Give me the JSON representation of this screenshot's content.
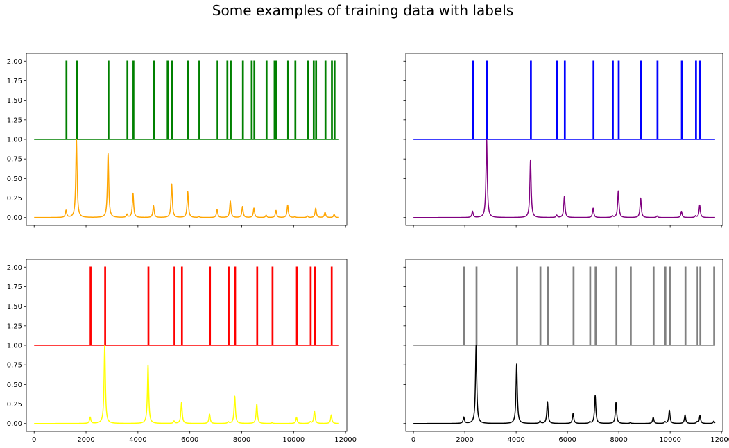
{
  "figure": {
    "suptitle": "Some examples of training data with labels"
  },
  "chart_data": [
    {
      "type": "line",
      "panel": "top-left",
      "xlim": [
        -300,
        12050
      ],
      "ylim": [
        -0.1,
        2.1
      ],
      "xticks": [
        0,
        2000,
        4000,
        6000,
        8000,
        10000,
        12000
      ],
      "yticks": [
        0.0,
        0.25,
        0.5,
        0.75,
        1.0,
        1.25,
        1.5,
        1.75,
        2.0
      ],
      "show_x_tick_labels": false,
      "show_y_tick_labels": true,
      "x_range": [
        0,
        11750
      ],
      "grid": false,
      "legend": "none",
      "series": [
        {
          "kind": "labels",
          "color": "#008000",
          "baseline": 1.0,
          "level": 2.0,
          "x": [
            1230,
            1630,
            2850,
            3580,
            3810,
            4600,
            5130,
            5300,
            5920,
            6350,
            7050,
            7430,
            7560,
            8030,
            8370,
            8470,
            8940,
            9250,
            9320,
            9770,
            10050,
            10530,
            10760,
            10850,
            11210,
            11460,
            11560
          ]
        },
        {
          "kind": "spectrum",
          "color": "#ffa500",
          "baseline": 0.0,
          "peaks": [
            {
              "x": 1230,
              "y": 0.09
            },
            {
              "x": 1630,
              "y": 1.0
            },
            {
              "x": 2850,
              "y": 0.82
            },
            {
              "x": 3580,
              "y": 0.04
            },
            {
              "x": 3810,
              "y": 0.31
            },
            {
              "x": 4600,
              "y": 0.15
            },
            {
              "x": 5300,
              "y": 0.43
            },
            {
              "x": 5920,
              "y": 0.33
            },
            {
              "x": 6350,
              "y": 0.01
            },
            {
              "x": 7050,
              "y": 0.1
            },
            {
              "x": 7560,
              "y": 0.21
            },
            {
              "x": 8030,
              "y": 0.14
            },
            {
              "x": 8470,
              "y": 0.12
            },
            {
              "x": 8940,
              "y": 0.03
            },
            {
              "x": 9320,
              "y": 0.09
            },
            {
              "x": 9770,
              "y": 0.16
            },
            {
              "x": 10050,
              "y": 0.01
            },
            {
              "x": 10530,
              "y": 0.02
            },
            {
              "x": 10850,
              "y": 0.12
            },
            {
              "x": 11210,
              "y": 0.07
            },
            {
              "x": 11560,
              "y": 0.04
            }
          ]
        }
      ]
    },
    {
      "type": "line",
      "panel": "top-right",
      "xlim": [
        -300,
        12050
      ],
      "ylim": [
        -0.1,
        2.1
      ],
      "xticks": [
        0,
        2000,
        4000,
        6000,
        8000,
        10000,
        12000
      ],
      "yticks": [
        0.0,
        0.25,
        0.5,
        0.75,
        1.0,
        1.25,
        1.5,
        1.75,
        2.0
      ],
      "show_x_tick_labels": false,
      "show_y_tick_labels": false,
      "x_range": [
        0,
        11750
      ],
      "grid": false,
      "legend": "none",
      "series": [
        {
          "kind": "labels",
          "color": "#0000ff",
          "baseline": 1.0,
          "level": 2.0,
          "x": [
            2300,
            2850,
            4560,
            5580,
            5880,
            7000,
            7750,
            7980,
            8850,
            9490,
            10440,
            10990,
            11150
          ]
        },
        {
          "kind": "spectrum",
          "color": "#800080",
          "baseline": 0.0,
          "peaks": [
            {
              "x": 2300,
              "y": 0.08
            },
            {
              "x": 2850,
              "y": 1.0
            },
            {
              "x": 4560,
              "y": 0.74
            },
            {
              "x": 5580,
              "y": 0.03
            },
            {
              "x": 5880,
              "y": 0.27
            },
            {
              "x": 7000,
              "y": 0.12
            },
            {
              "x": 7750,
              "y": 0.02
            },
            {
              "x": 7980,
              "y": 0.34
            },
            {
              "x": 8850,
              "y": 0.25
            },
            {
              "x": 9490,
              "y": 0.02
            },
            {
              "x": 10440,
              "y": 0.08
            },
            {
              "x": 10990,
              "y": 0.02
            },
            {
              "x": 11150,
              "y": 0.16
            }
          ]
        }
      ]
    },
    {
      "type": "line",
      "panel": "bottom-left",
      "xlim": [
        -300,
        12050
      ],
      "ylim": [
        -0.1,
        2.1
      ],
      "xticks": [
        0,
        2000,
        4000,
        6000,
        8000,
        10000,
        12000
      ],
      "yticks": [
        0.0,
        0.25,
        0.5,
        0.75,
        1.0,
        1.25,
        1.5,
        1.75,
        2.0
      ],
      "show_x_tick_labels": true,
      "show_y_tick_labels": true,
      "x_range": [
        0,
        11750
      ],
      "grid": false,
      "legend": "none",
      "series": [
        {
          "kind": "labels",
          "color": "#ff0000",
          "baseline": 1.0,
          "level": 2.0,
          "x": [
            2160,
            2720,
            4390,
            5390,
            5680,
            6760,
            7480,
            7730,
            8580,
            9170,
            10110,
            10640,
            10800,
            11450
          ]
        },
        {
          "kind": "spectrum",
          "color": "#ffff00",
          "baseline": 0.0,
          "peaks": [
            {
              "x": 2160,
              "y": 0.08
            },
            {
              "x": 2720,
              "y": 1.0
            },
            {
              "x": 4390,
              "y": 0.75
            },
            {
              "x": 5390,
              "y": 0.03
            },
            {
              "x": 5680,
              "y": 0.27
            },
            {
              "x": 6760,
              "y": 0.12
            },
            {
              "x": 7480,
              "y": 0.02
            },
            {
              "x": 7730,
              "y": 0.35
            },
            {
              "x": 8580,
              "y": 0.25
            },
            {
              "x": 9170,
              "y": 0.01
            },
            {
              "x": 10110,
              "y": 0.08
            },
            {
              "x": 10640,
              "y": 0.02
            },
            {
              "x": 10800,
              "y": 0.16
            },
            {
              "x": 11450,
              "y": 0.11
            }
          ]
        }
      ]
    },
    {
      "type": "line",
      "panel": "bottom-right",
      "xlim": [
        -300,
        12050
      ],
      "ylim": [
        -0.1,
        2.1
      ],
      "xticks": [
        0,
        2000,
        4000,
        6000,
        8000,
        10000,
        12000
      ],
      "yticks": [
        0.0,
        0.25,
        0.5,
        0.75,
        1.0,
        1.25,
        1.5,
        1.75,
        2.0
      ],
      "show_x_tick_labels": true,
      "show_y_tick_labels": false,
      "x_range": [
        0,
        11750
      ],
      "grid": false,
      "legend": "none",
      "series": [
        {
          "kind": "labels",
          "color": "#808080",
          "baseline": 1.0,
          "level": 2.0,
          "x": [
            1960,
            2440,
            4020,
            4930,
            5220,
            6220,
            6870,
            7080,
            7890,
            8450,
            9340,
            9800,
            9970,
            10580,
            11050,
            11160,
            11700
          ]
        },
        {
          "kind": "spectrum",
          "color": "#000000",
          "baseline": 0.0,
          "peaks": [
            {
              "x": 1960,
              "y": 0.08
            },
            {
              "x": 2440,
              "y": 1.0
            },
            {
              "x": 4020,
              "y": 0.76
            },
            {
              "x": 4930,
              "y": 0.03
            },
            {
              "x": 5220,
              "y": 0.28
            },
            {
              "x": 6220,
              "y": 0.13
            },
            {
              "x": 6870,
              "y": 0.02
            },
            {
              "x": 7080,
              "y": 0.36
            },
            {
              "x": 7890,
              "y": 0.27
            },
            {
              "x": 8450,
              "y": 0.01
            },
            {
              "x": 9340,
              "y": 0.08
            },
            {
              "x": 9800,
              "y": 0.02
            },
            {
              "x": 9970,
              "y": 0.17
            },
            {
              "x": 10580,
              "y": 0.11
            },
            {
              "x": 11050,
              "y": 0.02
            },
            {
              "x": 11160,
              "y": 0.1
            },
            {
              "x": 11700,
              "y": 0.03
            }
          ]
        }
      ]
    }
  ]
}
